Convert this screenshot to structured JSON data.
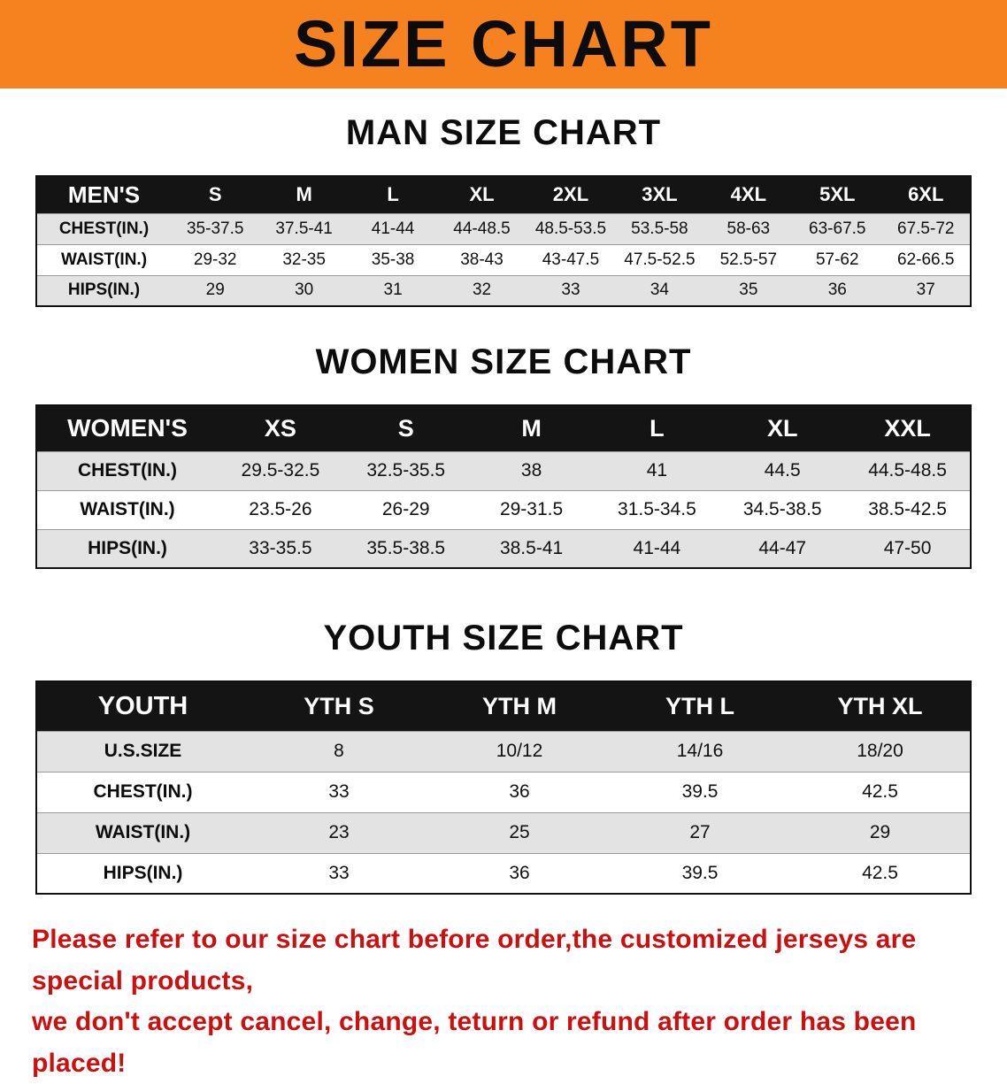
{
  "banner": {
    "title": "SIZE CHART"
  },
  "sections": [
    {
      "heading": "MAN SIZE CHART",
      "table": {
        "header": [
          "MEN'S",
          "S",
          "M",
          "L",
          "XL",
          "2XL",
          "3XL",
          "4XL",
          "5XL",
          "6XL"
        ],
        "rows": [
          [
            "CHEST(IN.)",
            "35-37.5",
            "37.5-41",
            "41-44",
            "44-48.5",
            "48.5-53.5",
            "53.5-58",
            "58-63",
            "63-67.5",
            "67.5-72"
          ],
          [
            "WAIST(IN.)",
            "29-32",
            "32-35",
            "35-38",
            "38-43",
            "43-47.5",
            "47.5-52.5",
            "52.5-57",
            "57-62",
            "62-66.5"
          ],
          [
            "HIPS(IN.)",
            "29",
            "30",
            "31",
            "32",
            "33",
            "34",
            "35",
            "36",
            "37"
          ]
        ]
      }
    },
    {
      "heading": "WOMEN SIZE CHART",
      "table": {
        "header": [
          "WOMEN'S",
          "XS",
          "S",
          "M",
          "L",
          "XL",
          "XXL"
        ],
        "rows": [
          [
            "CHEST(IN.)",
            "29.5-32.5",
            "32.5-35.5",
            "38",
            "41",
            "44.5",
            "44.5-48.5"
          ],
          [
            "WAIST(IN.)",
            "23.5-26",
            "26-29",
            "29-31.5",
            "31.5-34.5",
            "34.5-38.5",
            "38.5-42.5"
          ],
          [
            "HIPS(IN.)",
            "33-35.5",
            "35.5-38.5",
            "38.5-41",
            "41-44",
            "44-47",
            "47-50"
          ]
        ]
      }
    },
    {
      "heading": "YOUTH SIZE CHART",
      "table": {
        "header": [
          "YOUTH",
          "YTH S",
          "YTH M",
          "YTH L",
          "YTH XL"
        ],
        "rows": [
          [
            "U.S.SIZE",
            "8",
            "10/12",
            "14/16",
            "18/20"
          ],
          [
            "CHEST(IN.)",
            "33",
            "36",
            "39.5",
            "42.5"
          ],
          [
            "WAIST(IN.)",
            "23",
            "25",
            "27",
            "29"
          ],
          [
            "HIPS(IN.)",
            "33",
            "36",
            "39.5",
            "42.5"
          ]
        ]
      }
    }
  ],
  "disclaimer": {
    "line1": "Please refer to our size chart before order,the customized jerseys are special products,",
    "line2": "we don't accept cancel, change, teturn or refund after order has been placed!"
  },
  "colors": {
    "banner_bg": "#f5821f",
    "header_bg": "#141414",
    "row_alt": "#e3e3e3",
    "disclaimer": "#cc0f0f"
  }
}
